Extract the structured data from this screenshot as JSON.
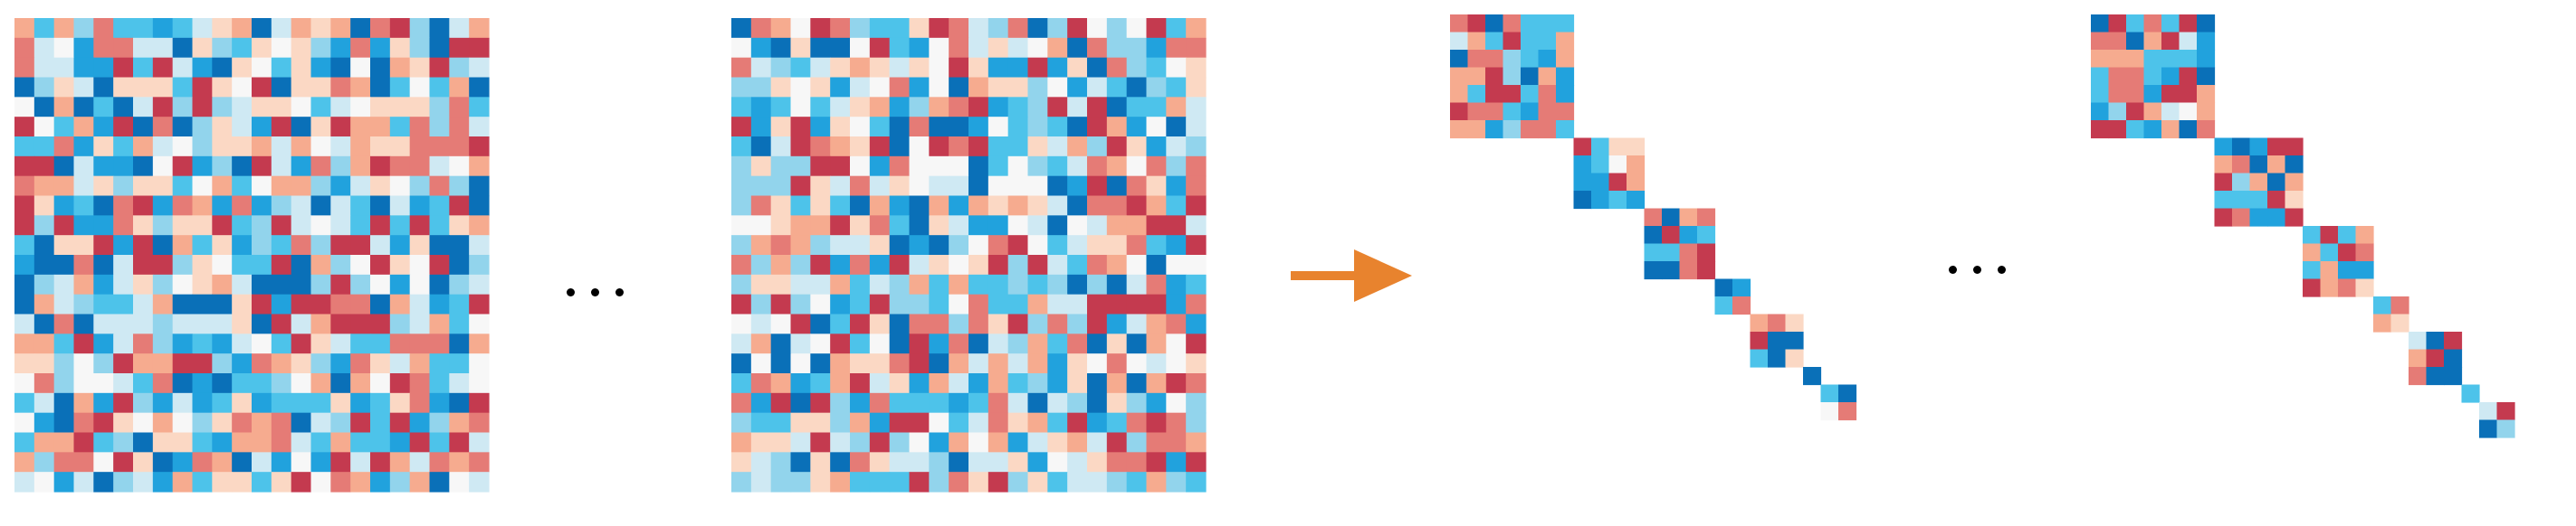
{
  "colors": {
    "palette": [
      "#0a70b8",
      "#21a2dd",
      "#4dc3ea",
      "#92d4ec",
      "#cfe9f3",
      "#f7f7f7",
      "#fbd8c4",
      "#f6ab8f",
      "#e57b76",
      "#c43a4f"
    ],
    "arrow": "#e8832e",
    "ellipsis": "#000000"
  },
  "panels": [
    {
      "id": "dense-matrix-1",
      "kind": "dense",
      "grid_size": 24
    },
    {
      "id": "dense-matrix-2",
      "kind": "dense",
      "grid_size": 24
    },
    {
      "id": "block-diagonal-matrix-1",
      "kind": "block-diagonal",
      "blocks": [
        7,
        4,
        4,
        2,
        3,
        1,
        2
      ]
    },
    {
      "id": "block-diagonal-matrix-2",
      "kind": "block-diagonal",
      "blocks": [
        7,
        5,
        4,
        2,
        3,
        1,
        2
      ]
    }
  ],
  "icons": {
    "arrow": "right-arrow-icon",
    "ellipsis": "ellipsis-icon"
  }
}
